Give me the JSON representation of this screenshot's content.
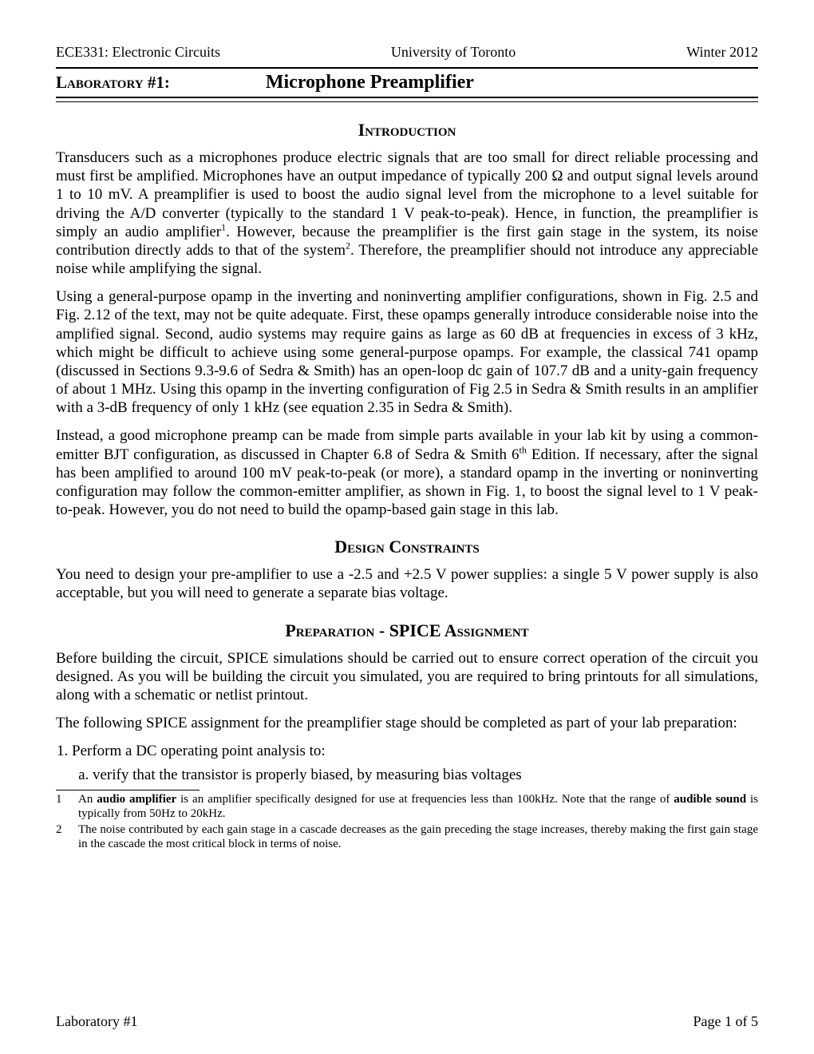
{
  "header": {
    "left": "ECE331: Electronic Circuits",
    "center": "University of Toronto",
    "right": "Winter 2012"
  },
  "title": {
    "lab_label": "Laboratory #1:",
    "lab_title": "Microphone Preamplifier"
  },
  "sections": {
    "intro_heading": "Introduction",
    "intro_p1": "Transducers such as a microphones produce electric signals that are too small for direct reliable processing and must first be amplified. Microphones have an output impedance of typically 200 Ω and output signal levels around 1 to 10 mV. A preamplifier is used to boost the audio signal level from the microphone to a level suitable for driving the A/D converter (typically to the standard 1 V peak-to-peak). Hence, in function, the preamplifier is simply an audio amplifier",
    "intro_p1_after_fn1": ". However, because the preamplifier is the first gain stage in the system, its noise contribution directly adds to that of the system",
    "intro_p1_after_fn2": ". Therefore, the preamplifier should not introduce any appreciable noise while amplifying the signal.",
    "intro_p2": "Using a general-purpose opamp in the inverting and noninverting amplifier configurations, shown in Fig. 2.5 and Fig. 2.12 of the text, may not be quite adequate. First, these opamps generally introduce considerable noise into the amplified signal. Second, audio systems may require gains as large as 60 dB at frequencies in excess of 3 kHz, which might be difficult to achieve using some general-purpose opamps.  For example, the classical 741 opamp (discussed in Sections 9.3-9.6 of Sedra & Smith) has an open-loop dc gain of 107.7 dB and a unity-gain frequency of about 1 MHz. Using this opamp in the inverting configuration of Fig 2.5 in Sedra & Smith results in an amplifier with a 3-dB frequency of only 1 kHz (see equation 2.35 in Sedra & Smith).",
    "intro_p3_a": "Instead, a good microphone preamp can be made from simple parts available in your lab kit by using a common-emitter BJT configuration, as discussed in Chapter 6.8 of Sedra & Smith 6",
    "intro_p3_b": " Edition.  If necessary, after the signal has been amplified to around 100 mV peak-to-peak (or more), a standard opamp in the inverting or noninverting configuration may follow the common-emitter amplifier, as shown in Fig. 1, to boost the signal level to 1 V peak-to-peak.  However, you do not need to build the opamp-based gain stage in this lab.",
    "design_heading": "Design Constraints",
    "design_p1": "You need to design your pre-amplifier to use a -2.5 and +2.5 V power supplies: a single 5 V power supply is also acceptable, but you will need to generate a separate bias voltage.",
    "prep_heading": "Preparation - SPICE Assignment",
    "prep_p1": "Before building the circuit, SPICE simulations should be carried out to ensure correct operation of the circuit you designed.  As you will be building the circuit you simulated, you are required to bring printouts for all simulations, along with a schematic or netlist printout.",
    "prep_p2": "The following SPICE assignment for the preamplifier stage should be completed as part of your lab preparation:",
    "prep_item1": "Perform a DC operating point analysis to:",
    "prep_item1a": "verify that the transistor is properly biased, by measuring bias voltages"
  },
  "footnotes": {
    "fn1_num": "1",
    "fn1_a": "An ",
    "fn1_bold1": "audio amplifier",
    "fn1_b": " is an amplifier specifically designed for use at frequencies less than 100kHz.  Note that the range of ",
    "fn1_bold2": "audible sound",
    "fn1_c": " is typically from 50Hz to 20kHz.",
    "fn2_num": "2",
    "fn2": "The noise contributed by each gain stage in a cascade decreases as the gain preceding the stage increases, thereby making the first gain stage in the cascade the most critical block in terms of noise."
  },
  "footer": {
    "left": "Laboratory #1",
    "right": "Page 1 of 5"
  },
  "sup": {
    "one": "1",
    "two": "2",
    "th": "th"
  }
}
